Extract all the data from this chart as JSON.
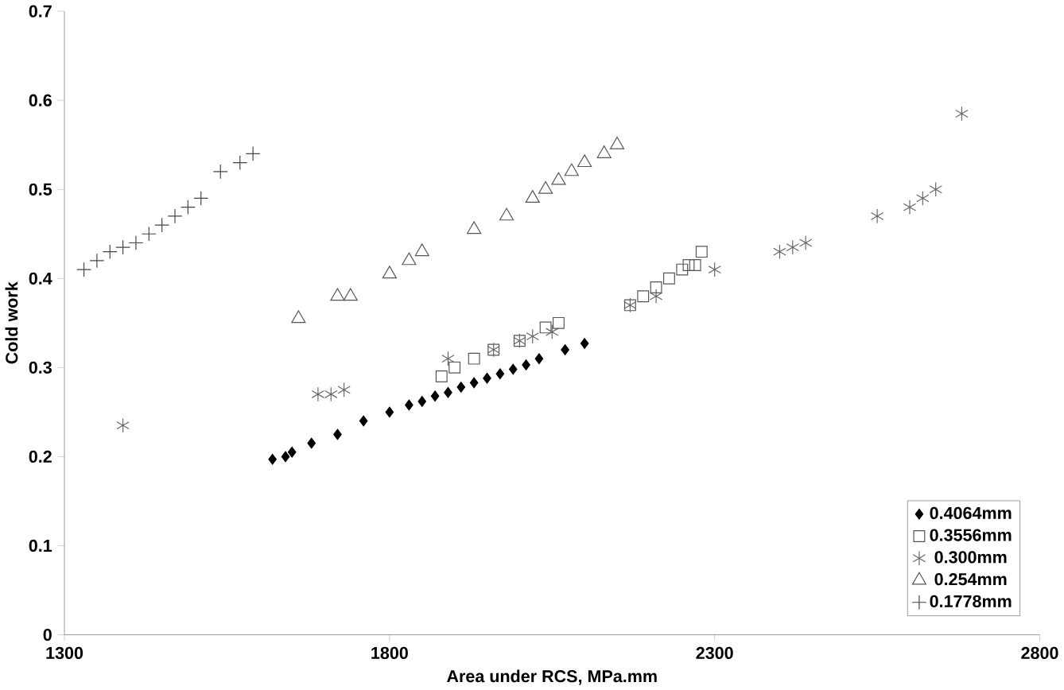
{
  "chart_data": {
    "type": "scatter",
    "xlabel": "Area under RCS, MPa.mm",
    "ylabel": "Cold work",
    "xlim": [
      1300,
      2800
    ],
    "xticks": [
      1300,
      1800,
      2300,
      2800
    ],
    "ylim": [
      0,
      0.7
    ],
    "yticks": [
      0,
      0.1,
      0.2,
      0.3,
      0.4,
      0.5,
      0.6,
      0.7
    ],
    "legend": "bottom right",
    "grid": false,
    "series": [
      {
        "name": "0.4064mm",
        "color": "#000000",
        "marker": "diamond",
        "x": [
          1620,
          1640,
          1650,
          1680,
          1720,
          1760,
          1800,
          1830,
          1850,
          1870,
          1890,
          1910,
          1930,
          1950,
          1970,
          1990,
          2010,
          2030,
          2070,
          2100
        ],
        "values": [
          0.197,
          0.2,
          0.205,
          0.215,
          0.225,
          0.24,
          0.25,
          0.258,
          0.262,
          0.268,
          0.272,
          0.278,
          0.283,
          0.288,
          0.293,
          0.298,
          0.303,
          0.31,
          0.32,
          0.327
        ]
      },
      {
        "name": "0.3556mm",
        "color": "#555555",
        "marker": "square",
        "x": [
          1880,
          1900,
          1930,
          1960,
          2000,
          2040,
          2060,
          2170,
          2190,
          2210,
          2230,
          2250,
          2260,
          2270,
          2280
        ],
        "values": [
          0.29,
          0.3,
          0.31,
          0.32,
          0.33,
          0.345,
          0.35,
          0.37,
          0.38,
          0.39,
          0.4,
          0.41,
          0.415,
          0.415,
          0.43
        ]
      },
      {
        "name": "0.300mm",
        "color": "#666666",
        "marker": "cross",
        "x": [
          1390,
          1690,
          1710,
          1730,
          1890,
          1960,
          2000,
          2020,
          2050,
          2170,
          2210,
          2300,
          2400,
          2420,
          2440,
          2550,
          2600,
          2620,
          2640,
          2680
        ],
        "values": [
          0.235,
          0.27,
          0.27,
          0.275,
          0.31,
          0.32,
          0.33,
          0.335,
          0.34,
          0.37,
          0.38,
          0.41,
          0.43,
          0.435,
          0.44,
          0.47,
          0.48,
          0.49,
          0.5,
          0.585
        ]
      },
      {
        "name": "0.254mm",
        "color": "#555555",
        "marker": "triangle",
        "x": [
          1660,
          1720,
          1740,
          1800,
          1830,
          1850,
          1930,
          1980,
          2020,
          2040,
          2060,
          2080,
          2100,
          2130,
          2150
        ],
        "values": [
          0.355,
          0.38,
          0.38,
          0.405,
          0.42,
          0.43,
          0.455,
          0.47,
          0.49,
          0.5,
          0.51,
          0.52,
          0.53,
          0.54,
          0.55
        ]
      },
      {
        "name": "0.1778mm",
        "color": "#444444",
        "marker": "cross",
        "x": [
          1330,
          1350,
          1370,
          1390,
          1410,
          1430,
          1450,
          1470,
          1490,
          1510,
          1540,
          1570,
          1590
        ],
        "values": [
          0.41,
          0.42,
          0.43,
          0.435,
          0.44,
          0.45,
          0.46,
          0.47,
          0.48,
          0.49,
          0.52,
          0.53,
          0.54
        ]
      }
    ]
  }
}
